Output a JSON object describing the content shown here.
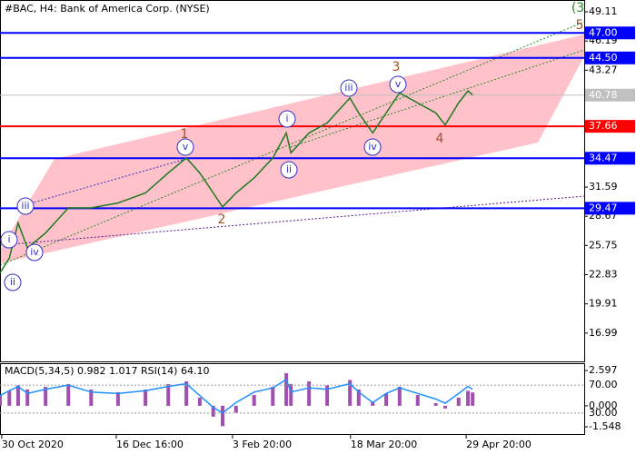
{
  "chart_data": [
    {
      "type": "line",
      "title": "#BAC, H4:  Bank of America Corp. (NYSE)",
      "x": [
        0,
        1.6,
        3.1,
        4.7,
        7.8,
        11.7,
        15.6,
        20.2,
        24.9,
        28.8,
        31.9,
        34.2,
        36.5,
        38.1,
        40.4,
        43.5,
        46.7,
        49,
        49.8,
        52.9,
        56,
        59.9,
        61.4,
        63.8,
        66.1,
        68.4,
        71.5,
        74.6,
        76.2,
        78.5,
        80.1,
        80.9
      ],
      "values": [
        23,
        24.5,
        28,
        25.5,
        27,
        29.5,
        29.5,
        30,
        31,
        33,
        34.5,
        33,
        31,
        29.6,
        31,
        32.5,
        34.5,
        37,
        35,
        37,
        38,
        40.5,
        39,
        37,
        39,
        41,
        40,
        39,
        37.8,
        40,
        41.2,
        40.8
      ],
      "color": "#1e7a1e",
      "xlim": [
        0,
        100
      ],
      "xticks": [
        {
          "value": 0.3,
          "label": "30 Oct 2020"
        },
        {
          "value": 19.9,
          "label": "16 Dec 16:00"
        },
        {
          "value": 39.8,
          "label": "3 Feb 20:00"
        },
        {
          "value": 60,
          "label": "18 Mar 20:00"
        },
        {
          "value": 79.8,
          "label": "29 Apr 20:00"
        }
      ],
      "ylim": [
        14.07,
        50.2
      ],
      "yticks": [
        16.99,
        19.91,
        22.83,
        25.75,
        28.67,
        31.59,
        43.27,
        46.19,
        49.11
      ],
      "levels": [
        {
          "value": 47.0,
          "label": "47.00",
          "color": "#0000ff"
        },
        {
          "value": 44.5,
          "label": "44.50",
          "color": "#0000ff"
        },
        {
          "value": 40.78,
          "label": "40.78",
          "color": "#c0c0c0"
        },
        {
          "value": 37.66,
          "label": "37.66",
          "color": "#ff0000"
        },
        {
          "value": 34.47,
          "label": "34.47",
          "color": "#0000ff"
        },
        {
          "value": 29.47,
          "label": "29.47",
          "color": "#0000ff"
        }
      ],
      "annotations": [
        {
          "text": "(3",
          "color": "#228b22"
        },
        {
          "text": "5",
          "color": "#a0522d"
        },
        {
          "text": "3",
          "color": "#a0522d"
        },
        {
          "text": "1",
          "color": "#a0522d"
        },
        {
          "text": "2",
          "color": "#a0522d"
        },
        {
          "text": "4",
          "color": "#a0522d"
        },
        {
          "text": "i",
          "color": "#3030c0"
        },
        {
          "text": "ii",
          "color": "#3030c0"
        },
        {
          "text": "iii",
          "color": "#3030c0"
        },
        {
          "text": "iv",
          "color": "#3030c0"
        },
        {
          "text": "v",
          "color": "#3030c0"
        },
        {
          "text": "i",
          "color": "#3030c0"
        },
        {
          "text": "ii",
          "color": "#3030c0"
        },
        {
          "text": "iii",
          "color": "#3030c0"
        },
        {
          "text": "iv",
          "color": "#3030c0"
        },
        {
          "text": "v",
          "color": "#3030c0"
        }
      ]
    },
    {
      "type": "bar",
      "title": "MACD(5,34,5) 0.982 1.017 RSI(14) 64.10",
      "values": [
        0.8,
        1.1,
        1.5,
        1.2,
        1.4,
        1.6,
        1.2,
        1.0,
        1.2,
        1.6,
        1.8,
        0.6,
        -0.8,
        -1.5,
        -0.5,
        0.8,
        1.4,
        2.4,
        1.6,
        1.8,
        1.5,
        1.9,
        1.2,
        0.3,
        0.9,
        1.4,
        0.8,
        0.2,
        -0.2,
        0.6,
        1.1,
        0.98
      ],
      "color": "#a050b0",
      "ylim": [
        -2.08,
        3.07
      ],
      "yticks": [
        {
          "value": 2.597,
          "label": "2.597"
        },
        {
          "value": 0,
          "label": "0.000"
        },
        {
          "value": -1.548,
          "label": "-1.548"
        }
      ],
      "rsi": {
        "values": [
          55,
          62,
          68,
          58,
          64,
          70,
          60,
          58,
          62,
          68,
          72,
          55,
          38,
          30,
          45,
          60,
          66,
          78,
          60,
          66,
          64,
          72,
          60,
          45,
          58,
          66,
          58,
          50,
          44,
          58,
          68,
          64.1
        ],
        "color": "#1e90ff",
        "axis": "y2"
      },
      "y2lim": [
        0,
        100
      ],
      "y2ticks": [
        {
          "value": 70,
          "label": "70.00"
        },
        {
          "value": 30,
          "label": "30.00"
        }
      ]
    }
  ]
}
